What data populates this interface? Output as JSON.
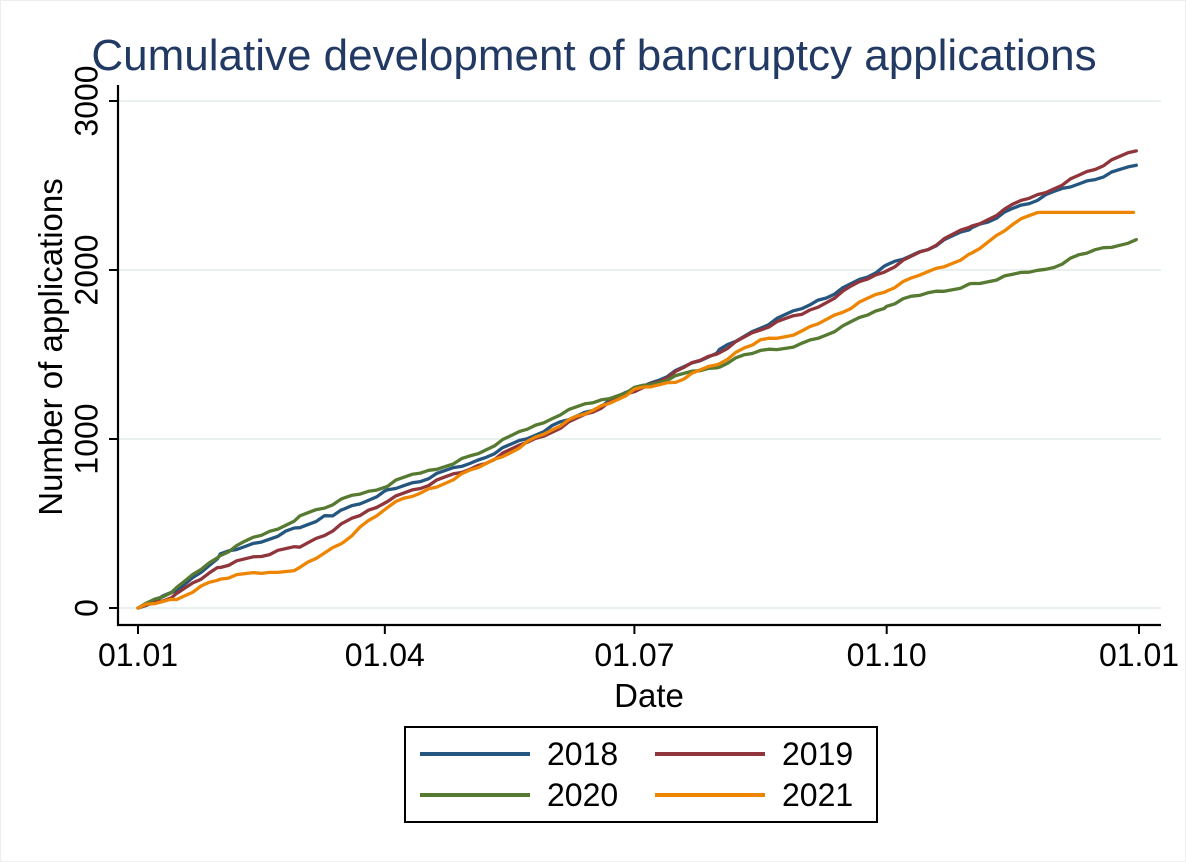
{
  "chart_data": {
    "type": "line",
    "title": "Cumulative development of bancruptcy applications",
    "title_color": "#223a63",
    "xlabel": "Date",
    "ylabel": "Number of applications",
    "x_tick_labels": [
      "01.01",
      "01.04",
      "01.07",
      "01.10",
      "01.01"
    ],
    "x_tick_days": [
      0,
      90,
      181,
      273,
      365
    ],
    "xlim_days": [
      0,
      365
    ],
    "y_ticks": [
      0,
      1000,
      2000,
      3000
    ],
    "ylim": [
      0,
      3000
    ],
    "grid": "horizontal",
    "gridline_color": "#e9f1ef",
    "axis_color": "#000000",
    "legend_position": "bottom-box",
    "legend_columns": 2,
    "series": [
      {
        "name": "2018",
        "color": "#24567f",
        "x": [
          0,
          14,
          30,
          45,
          59,
          75,
          91,
          106,
          121,
          136,
          151,
          166,
          181,
          196,
          212,
          227,
          242,
          257,
          273,
          288,
          304,
          319,
          334,
          349,
          364
        ],
        "y": [
          0,
          95,
          310,
          400,
          480,
          580,
          690,
          775,
          860,
          965,
          1070,
          1180,
          1295,
          1400,
          1520,
          1665,
          1776,
          1890,
          2020,
          2130,
          2250,
          2360,
          2455,
          2545,
          2620
        ]
      },
      {
        "name": "2019",
        "color": "#90353b",
        "x": [
          0,
          14,
          30,
          45,
          59,
          75,
          91,
          106,
          121,
          136,
          151,
          166,
          181,
          196,
          212,
          227,
          242,
          257,
          273,
          288,
          304,
          319,
          334,
          349,
          364
        ],
        "y": [
          0,
          80,
          250,
          310,
          360,
          500,
          640,
          730,
          820,
          935,
          1050,
          1165,
          1280,
          1395,
          1520,
          1650,
          1737,
          1870,
          2005,
          2125,
          2260,
          2380,
          2490,
          2600,
          2705
        ]
      },
      {
        "name": "2020",
        "color": "#567a31",
        "x": [
          0,
          14,
          30,
          45,
          59,
          75,
          91,
          106,
          121,
          136,
          151,
          166,
          181,
          196,
          212,
          227,
          242,
          257,
          273,
          288,
          304,
          319,
          334,
          349,
          364
        ],
        "y": [
          0,
          110,
          320,
          430,
          540,
          640,
          730,
          815,
          895,
          1010,
          1130,
          1215,
          1300,
          1365,
          1435,
          1524,
          1561,
          1660,
          1790,
          1865,
          1915,
          1965,
          2020,
          2120,
          2180
        ]
      },
      {
        "name": "2021",
        "color": "#ee8500",
        "x": [
          0,
          14,
          30,
          45,
          59,
          75,
          91,
          106,
          121,
          136,
          151,
          166,
          181,
          196,
          212,
          227,
          242,
          257,
          273,
          288,
          304,
          319,
          329,
          345,
          363
        ],
        "y": [
          0,
          60,
          176,
          205,
          230,
          400,
          600,
          700,
          806,
          930,
          1059,
          1170,
          1285,
          1345,
          1450,
          1582,
          1629,
          1760,
          1880,
          1985,
          2090,
          2280,
          2341,
          2341,
          2341
        ]
      }
    ]
  }
}
